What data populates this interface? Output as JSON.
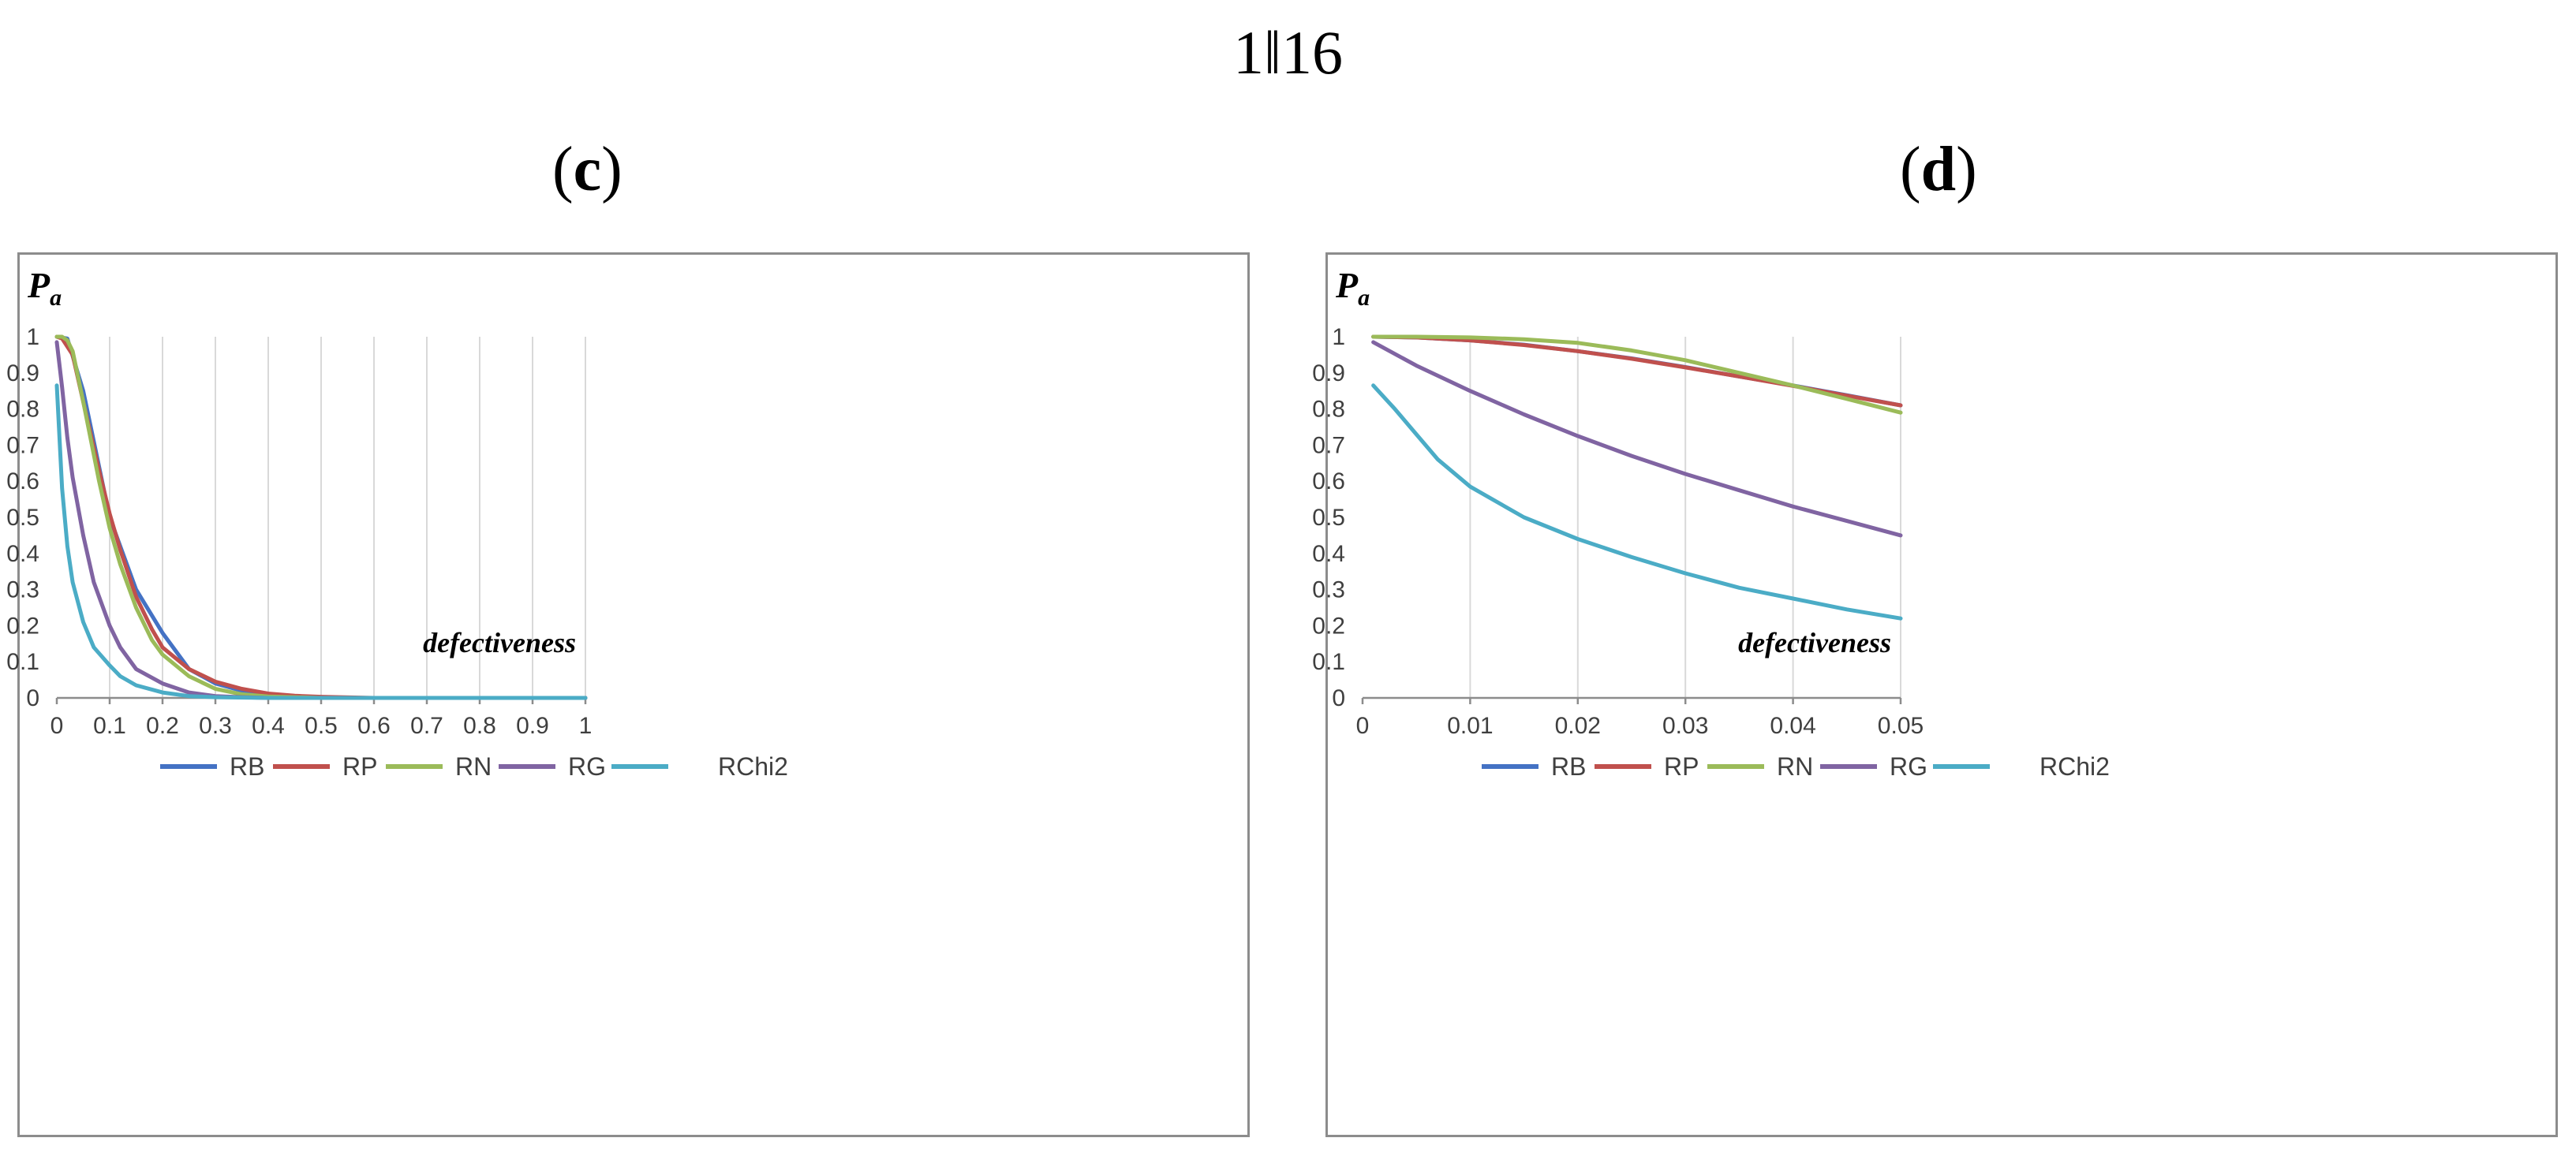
{
  "header": {
    "title": "1‖16"
  },
  "subfigures": [
    {
      "label_open": "(",
      "label_letter": "c",
      "label_close": ")"
    },
    {
      "label_open": "(",
      "label_letter": "d",
      "label_close": ")"
    }
  ],
  "chart_data": [
    {
      "type": "line",
      "ylabel": "P",
      "ylabel_sub": "a",
      "xlabel": "defectiveness",
      "xlim": [
        0,
        1
      ],
      "ylim": [
        0,
        1
      ],
      "xticks": [
        0,
        0.1,
        0.2,
        0.3,
        0.4,
        0.5,
        0.6,
        0.7,
        0.8,
        0.9,
        1
      ],
      "xtick_labels": [
        "0",
        "0.1",
        "0.2",
        "0.3",
        "0.4",
        "0.5",
        "0.6",
        "0.7",
        "0.8",
        "0.9",
        "1"
      ],
      "yticks": [
        0,
        0.1,
        0.2,
        0.3,
        0.4,
        0.5,
        0.6,
        0.7,
        0.8,
        0.9,
        1
      ],
      "ytick_labels": [
        "0",
        "0.1",
        "0.2",
        "0.3",
        "0.4",
        "0.5",
        "0.6",
        "0.7",
        "0.8",
        "0.9",
        "1"
      ],
      "grid": "vertical",
      "legend": "bottom",
      "series": [
        {
          "name": "RB",
          "color": "#4472c4",
          "x": [
            0,
            0.02,
            0.05,
            0.1,
            0.15,
            0.2,
            0.25,
            0.3,
            0.35,
            0.4,
            0.5,
            0.6,
            1
          ],
          "y": [
            1,
            0.995,
            0.85,
            0.5,
            0.3,
            0.18,
            0.08,
            0.04,
            0.02,
            0.01,
            0,
            0,
            0
          ]
        },
        {
          "name": "RP",
          "color": "#c0504d",
          "x": [
            0,
            0.01,
            0.03,
            0.05,
            0.08,
            0.1,
            0.12,
            0.15,
            0.18,
            0.2,
            0.25,
            0.3,
            0.35,
            0.4,
            0.45,
            0.5,
            0.6,
            1
          ],
          "y": [
            1,
            0.995,
            0.95,
            0.82,
            0.63,
            0.51,
            0.41,
            0.28,
            0.19,
            0.14,
            0.08,
            0.045,
            0.025,
            0.012,
            0.006,
            0.003,
            0,
            0
          ]
        },
        {
          "name": "RN",
          "color": "#9bbb59",
          "x": [
            0,
            0.01,
            0.02,
            0.03,
            0.05,
            0.08,
            0.1,
            0.12,
            0.15,
            0.18,
            0.2,
            0.25,
            0.3,
            0.35,
            0.4,
            0.5,
            0.6,
            1
          ],
          "y": [
            1,
            1,
            0.99,
            0.96,
            0.82,
            0.6,
            0.47,
            0.37,
            0.25,
            0.16,
            0.12,
            0.06,
            0.025,
            0.01,
            0.004,
            0,
            0,
            0
          ]
        },
        {
          "name": "RG",
          "color": "#8064a2",
          "x": [
            0,
            0.01,
            0.02,
            0.03,
            0.05,
            0.07,
            0.1,
            0.12,
            0.15,
            0.2,
            0.25,
            0.3,
            0.35,
            0.4,
            0.5,
            1
          ],
          "y": [
            0.985,
            0.86,
            0.72,
            0.61,
            0.45,
            0.32,
            0.2,
            0.14,
            0.08,
            0.04,
            0.015,
            0.005,
            0.002,
            0,
            0,
            0
          ]
        },
        {
          "name": "RChi2",
          "color": "#4bacc6",
          "x": [
            0,
            0.01,
            0.02,
            0.03,
            0.05,
            0.07,
            0.1,
            0.12,
            0.15,
            0.2,
            0.25,
            0.3,
            0.4,
            1
          ],
          "y": [
            0.865,
            0.58,
            0.42,
            0.32,
            0.21,
            0.14,
            0.09,
            0.06,
            0.035,
            0.015,
            0.005,
            0.002,
            0,
            0
          ]
        }
      ],
      "legend_entries": [
        "RB",
        "RP",
        "RN",
        "RG",
        "RChi2"
      ]
    },
    {
      "type": "line",
      "ylabel": "P",
      "ylabel_sub": "a",
      "xlabel": "defectiveness",
      "xlim": [
        0,
        0.05
      ],
      "ylim": [
        0,
        1
      ],
      "xticks": [
        0,
        0.01,
        0.02,
        0.03,
        0.04,
        0.05
      ],
      "xtick_labels": [
        "0",
        "0.01",
        "0.02",
        "0.03",
        "0.04",
        "0.05"
      ],
      "yticks": [
        0,
        0.1,
        0.2,
        0.3,
        0.4,
        0.5,
        0.6,
        0.7,
        0.8,
        0.9,
        1
      ],
      "ytick_labels": [
        "0",
        "0.1",
        "0.2",
        "0.3",
        "0.4",
        "0.5",
        "0.6",
        "0.7",
        "0.8",
        "0.9",
        "1"
      ],
      "grid": "vertical",
      "legend": "bottom",
      "series": [
        {
          "name": "RB",
          "color": "#4472c4",
          "x": [
            0.001,
            0.005,
            0.01,
            0.015,
            0.02,
            0.025,
            0.03,
            0.035,
            0.04,
            0.045,
            0.05
          ],
          "y": [
            1,
            0.998,
            0.99,
            0.978,
            0.96,
            0.94,
            0.916,
            0.89,
            0.865,
            0.838,
            0.81
          ]
        },
        {
          "name": "RP",
          "color": "#c0504d",
          "x": [
            0.001,
            0.005,
            0.01,
            0.015,
            0.02,
            0.025,
            0.03,
            0.035,
            0.04,
            0.045,
            0.05
          ],
          "y": [
            1,
            0.998,
            0.99,
            0.977,
            0.96,
            0.939,
            0.915,
            0.89,
            0.864,
            0.837,
            0.81
          ]
        },
        {
          "name": "RN",
          "color": "#9bbb59",
          "x": [
            0.001,
            0.005,
            0.01,
            0.015,
            0.02,
            0.025,
            0.03,
            0.035,
            0.04,
            0.045,
            0.05
          ],
          "y": [
            1,
            1,
            0.998,
            0.993,
            0.983,
            0.962,
            0.935,
            0.9,
            0.865,
            0.828,
            0.79
          ]
        },
        {
          "name": "RG",
          "color": "#8064a2",
          "x": [
            0.001,
            0.005,
            0.01,
            0.015,
            0.02,
            0.025,
            0.03,
            0.035,
            0.04,
            0.045,
            0.05
          ],
          "y": [
            0.985,
            0.92,
            0.85,
            0.785,
            0.725,
            0.67,
            0.62,
            0.575,
            0.53,
            0.49,
            0.45
          ]
        },
        {
          "name": "RChi2",
          "color": "#4bacc6",
          "x": [
            0.001,
            0.003,
            0.005,
            0.007,
            0.01,
            0.015,
            0.02,
            0.025,
            0.03,
            0.035,
            0.04,
            0.045,
            0.05
          ],
          "y": [
            0.865,
            0.8,
            0.73,
            0.66,
            0.585,
            0.5,
            0.44,
            0.39,
            0.345,
            0.305,
            0.275,
            0.245,
            0.22
          ]
        }
      ],
      "legend_entries": [
        "RB",
        "RP",
        "RN",
        "RG",
        "RChi2"
      ]
    }
  ]
}
